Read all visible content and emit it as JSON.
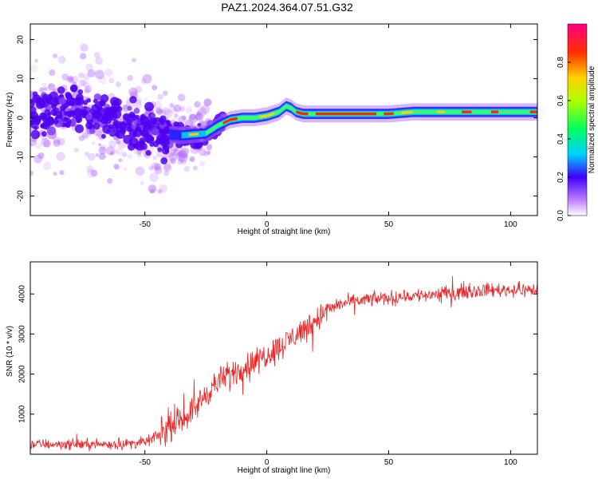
{
  "title": "PAZ1.2024.364.07.51.G32",
  "chart_data": [
    {
      "type": "heatmap",
      "xlabel": "Height of straight line (km)",
      "ylabel": "Frequency (Hz)",
      "xlim": [
        -97,
        111
      ],
      "ylim": [
        -25,
        24
      ],
      "x_ticks": [
        -50,
        0,
        50,
        100
      ],
      "y_ticks": [
        -20,
        -10,
        0,
        10,
        20
      ],
      "colorbar": {
        "label": "Normalized spectral amplitude",
        "range": [
          0,
          1
        ],
        "ticks": [
          "0.0",
          "0.2",
          "0.4",
          "0.6",
          "0.8"
        ],
        "colors": [
          "#ffffff",
          "#b040ff",
          "#4000ff",
          "#00c0ff",
          "#00ff60",
          "#ffff00",
          "#ff4000",
          "#ff0080"
        ]
      },
      "ridge": {
        "x": [
          -97,
          -80,
          -60,
          -45,
          -35,
          -25,
          -20,
          -15,
          -10,
          -5,
          0,
          5,
          8,
          10,
          12,
          15,
          20,
          30,
          40,
          50,
          60,
          70,
          80,
          90,
          100,
          111
        ],
        "y": [
          0.5,
          2.0,
          -1.0,
          -4.0,
          -4.5,
          -4.0,
          -2.0,
          -0.5,
          0.0,
          0.0,
          0.5,
          1.5,
          3.0,
          2.5,
          1.5,
          1.0,
          1.0,
          1.0,
          1.0,
          1.0,
          1.5,
          1.5,
          1.5,
          1.5,
          1.5,
          1.5
        ]
      }
    },
    {
      "type": "line",
      "xlabel": "Height of straight line (km)",
      "ylabel": "SNR (10 * v/v)",
      "xlim": [
        -97,
        111
      ],
      "ylim": [
        0,
        4800
      ],
      "x_ticks": [
        -50,
        0,
        50,
        100
      ],
      "y_ticks": [
        1000,
        2000,
        3000,
        4000
      ],
      "color": "#ee2222",
      "trend": {
        "x": [
          -97,
          -80,
          -60,
          -50,
          -45,
          -40,
          -30,
          -25,
          -20,
          -15,
          -10,
          -5,
          0,
          5,
          10,
          15,
          20,
          25,
          30,
          40,
          50,
          60,
          70,
          80,
          90,
          100,
          111
        ],
        "y": [
          250,
          250,
          250,
          300,
          450,
          650,
          1100,
          1500,
          1800,
          2000,
          2150,
          2300,
          2500,
          2650,
          2900,
          3100,
          3350,
          3600,
          3750,
          3850,
          3900,
          3950,
          4000,
          4050,
          4100,
          4100,
          4100
        ]
      }
    }
  ]
}
